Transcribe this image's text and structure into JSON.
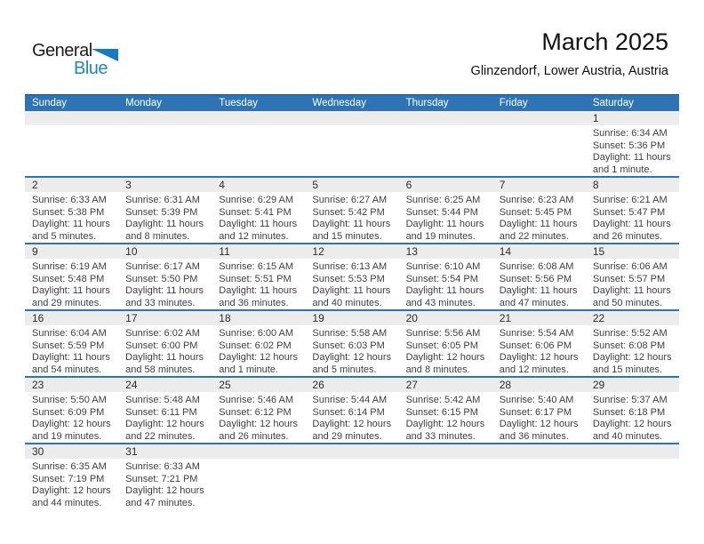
{
  "logo": {
    "general": "General",
    "blue": "Blue"
  },
  "header": {
    "title": "March 2025",
    "subtitle": "Glinzendorf, Lower Austria, Austria"
  },
  "colors": {
    "header_blue": "#2e74b5",
    "week_border_blue": "#2e74b5",
    "day_band_gray": "#ececec",
    "logo_blue": "#1f86c8",
    "logo_triangle_blue": "#1779be"
  },
  "calendar": {
    "weekdays": [
      "Sunday",
      "Monday",
      "Tuesday",
      "Wednesday",
      "Thursday",
      "Friday",
      "Saturday"
    ],
    "weeks": [
      [
        {
          "day": "",
          "lines": []
        },
        {
          "day": "",
          "lines": []
        },
        {
          "day": "",
          "lines": []
        },
        {
          "day": "",
          "lines": []
        },
        {
          "day": "",
          "lines": []
        },
        {
          "day": "",
          "lines": []
        },
        {
          "day": "1",
          "lines": [
            "Sunrise: 6:34 AM",
            "Sunset: 5:36 PM",
            "Daylight: 11 hours",
            "and 1 minute."
          ]
        }
      ],
      [
        {
          "day": "2",
          "lines": [
            "Sunrise: 6:33 AM",
            "Sunset: 5:38 PM",
            "Daylight: 11 hours",
            "and 5 minutes."
          ]
        },
        {
          "day": "3",
          "lines": [
            "Sunrise: 6:31 AM",
            "Sunset: 5:39 PM",
            "Daylight: 11 hours",
            "and 8 minutes."
          ]
        },
        {
          "day": "4",
          "lines": [
            "Sunrise: 6:29 AM",
            "Sunset: 5:41 PM",
            "Daylight: 11 hours",
            "and 12 minutes."
          ]
        },
        {
          "day": "5",
          "lines": [
            "Sunrise: 6:27 AM",
            "Sunset: 5:42 PM",
            "Daylight: 11 hours",
            "and 15 minutes."
          ]
        },
        {
          "day": "6",
          "lines": [
            "Sunrise: 6:25 AM",
            "Sunset: 5:44 PM",
            "Daylight: 11 hours",
            "and 19 minutes."
          ]
        },
        {
          "day": "7",
          "lines": [
            "Sunrise: 6:23 AM",
            "Sunset: 5:45 PM",
            "Daylight: 11 hours",
            "and 22 minutes."
          ]
        },
        {
          "day": "8",
          "lines": [
            "Sunrise: 6:21 AM",
            "Sunset: 5:47 PM",
            "Daylight: 11 hours",
            "and 26 minutes."
          ]
        }
      ],
      [
        {
          "day": "9",
          "lines": [
            "Sunrise: 6:19 AM",
            "Sunset: 5:48 PM",
            "Daylight: 11 hours",
            "and 29 minutes."
          ]
        },
        {
          "day": "10",
          "lines": [
            "Sunrise: 6:17 AM",
            "Sunset: 5:50 PM",
            "Daylight: 11 hours",
            "and 33 minutes."
          ]
        },
        {
          "day": "11",
          "lines": [
            "Sunrise: 6:15 AM",
            "Sunset: 5:51 PM",
            "Daylight: 11 hours",
            "and 36 minutes."
          ]
        },
        {
          "day": "12",
          "lines": [
            "Sunrise: 6:13 AM",
            "Sunset: 5:53 PM",
            "Daylight: 11 hours",
            "and 40 minutes."
          ]
        },
        {
          "day": "13",
          "lines": [
            "Sunrise: 6:10 AM",
            "Sunset: 5:54 PM",
            "Daylight: 11 hours",
            "and 43 minutes."
          ]
        },
        {
          "day": "14",
          "lines": [
            "Sunrise: 6:08 AM",
            "Sunset: 5:56 PM",
            "Daylight: 11 hours",
            "and 47 minutes."
          ]
        },
        {
          "day": "15",
          "lines": [
            "Sunrise: 6:06 AM",
            "Sunset: 5:57 PM",
            "Daylight: 11 hours",
            "and 50 minutes."
          ]
        }
      ],
      [
        {
          "day": "16",
          "lines": [
            "Sunrise: 6:04 AM",
            "Sunset: 5:59 PM",
            "Daylight: 11 hours",
            "and 54 minutes."
          ]
        },
        {
          "day": "17",
          "lines": [
            "Sunrise: 6:02 AM",
            "Sunset: 6:00 PM",
            "Daylight: 11 hours",
            "and 58 minutes."
          ]
        },
        {
          "day": "18",
          "lines": [
            "Sunrise: 6:00 AM",
            "Sunset: 6:02 PM",
            "Daylight: 12 hours",
            "and 1 minute."
          ]
        },
        {
          "day": "19",
          "lines": [
            "Sunrise: 5:58 AM",
            "Sunset: 6:03 PM",
            "Daylight: 12 hours",
            "and 5 minutes."
          ]
        },
        {
          "day": "20",
          "lines": [
            "Sunrise: 5:56 AM",
            "Sunset: 6:05 PM",
            "Daylight: 12 hours",
            "and 8 minutes."
          ]
        },
        {
          "day": "21",
          "lines": [
            "Sunrise: 5:54 AM",
            "Sunset: 6:06 PM",
            "Daylight: 12 hours",
            "and 12 minutes."
          ]
        },
        {
          "day": "22",
          "lines": [
            "Sunrise: 5:52 AM",
            "Sunset: 6:08 PM",
            "Daylight: 12 hours",
            "and 15 minutes."
          ]
        }
      ],
      [
        {
          "day": "23",
          "lines": [
            "Sunrise: 5:50 AM",
            "Sunset: 6:09 PM",
            "Daylight: 12 hours",
            "and 19 minutes."
          ]
        },
        {
          "day": "24",
          "lines": [
            "Sunrise: 5:48 AM",
            "Sunset: 6:11 PM",
            "Daylight: 12 hours",
            "and 22 minutes."
          ]
        },
        {
          "day": "25",
          "lines": [
            "Sunrise: 5:46 AM",
            "Sunset: 6:12 PM",
            "Daylight: 12 hours",
            "and 26 minutes."
          ]
        },
        {
          "day": "26",
          "lines": [
            "Sunrise: 5:44 AM",
            "Sunset: 6:14 PM",
            "Daylight: 12 hours",
            "and 29 minutes."
          ]
        },
        {
          "day": "27",
          "lines": [
            "Sunrise: 5:42 AM",
            "Sunset: 6:15 PM",
            "Daylight: 12 hours",
            "and 33 minutes."
          ]
        },
        {
          "day": "28",
          "lines": [
            "Sunrise: 5:40 AM",
            "Sunset: 6:17 PM",
            "Daylight: 12 hours",
            "and 36 minutes."
          ]
        },
        {
          "day": "29",
          "lines": [
            "Sunrise: 5:37 AM",
            "Sunset: 6:18 PM",
            "Daylight: 12 hours",
            "and 40 minutes."
          ]
        }
      ],
      [
        {
          "day": "30",
          "lines": [
            "Sunrise: 6:35 AM",
            "Sunset: 7:19 PM",
            "Daylight: 12 hours",
            "and 44 minutes."
          ]
        },
        {
          "day": "31",
          "lines": [
            "Sunrise: 6:33 AM",
            "Sunset: 7:21 PM",
            "Daylight: 12 hours",
            "and 47 minutes."
          ]
        },
        {
          "day": "",
          "lines": []
        },
        {
          "day": "",
          "lines": []
        },
        {
          "day": "",
          "lines": []
        },
        {
          "day": "",
          "lines": []
        },
        {
          "day": "",
          "lines": []
        }
      ]
    ]
  }
}
